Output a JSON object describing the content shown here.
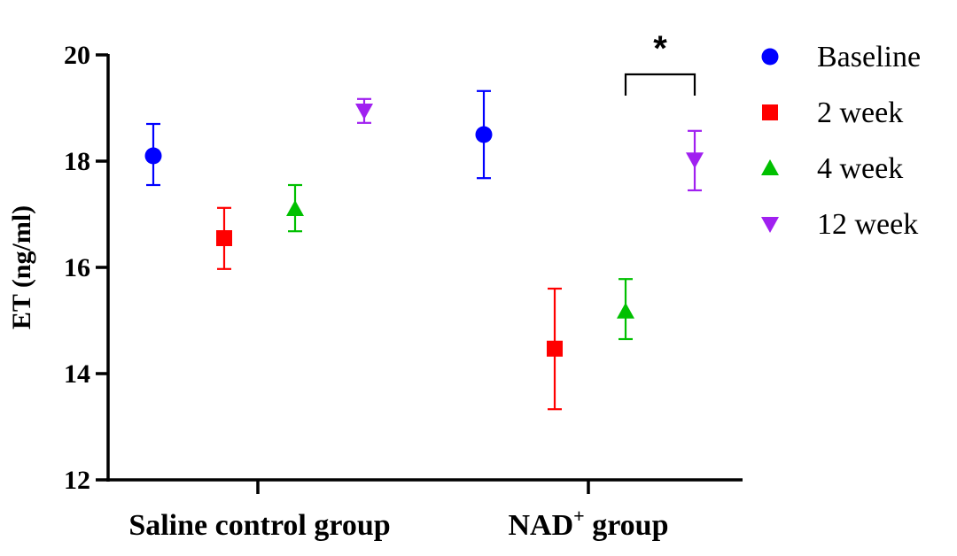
{
  "chart_data": {
    "type": "scatter",
    "title": "",
    "ylabel": "ET (ng/ml)",
    "xlabel": "",
    "ylim": [
      12,
      20
    ],
    "yticks": [
      12,
      14,
      16,
      18,
      20
    ],
    "categories": [
      "Saline control group",
      "NAD+ group"
    ],
    "group_label_main": [
      "Saline control group",
      "NAD"
    ],
    "group_label_sup": [
      "",
      "+"
    ],
    "group_label_tail": [
      "",
      " group"
    ],
    "series": [
      {
        "name": "Baseline",
        "color": "#0000ff",
        "marker": "circle",
        "values": [
          18.1,
          18.5
        ],
        "err_low": [
          17.55,
          17.68
        ],
        "err_high": [
          18.7,
          19.32
        ]
      },
      {
        "name": "2 week",
        "color": "#ff0000",
        "marker": "square",
        "values": [
          16.55,
          14.47
        ],
        "err_low": [
          15.97,
          13.33
        ],
        "err_high": [
          17.12,
          15.6
        ]
      },
      {
        "name": "4 week",
        "color": "#00c000",
        "marker": "triangle-up",
        "values": [
          17.1,
          15.17
        ],
        "err_low": [
          16.68,
          14.65
        ],
        "err_high": [
          17.55,
          15.78
        ]
      },
      {
        "name": "12 week",
        "color": "#a020f0",
        "marker": "triangle-down",
        "values": [
          18.95,
          18.03
        ],
        "err_low": [
          18.72,
          17.45
        ],
        "err_high": [
          19.17,
          18.57
        ]
      }
    ],
    "annotations": [
      {
        "text": "*",
        "group": "NAD+ group",
        "between": [
          "4 week",
          "12 week"
        ]
      }
    ],
    "legend": {
      "position": "top-right"
    }
  }
}
